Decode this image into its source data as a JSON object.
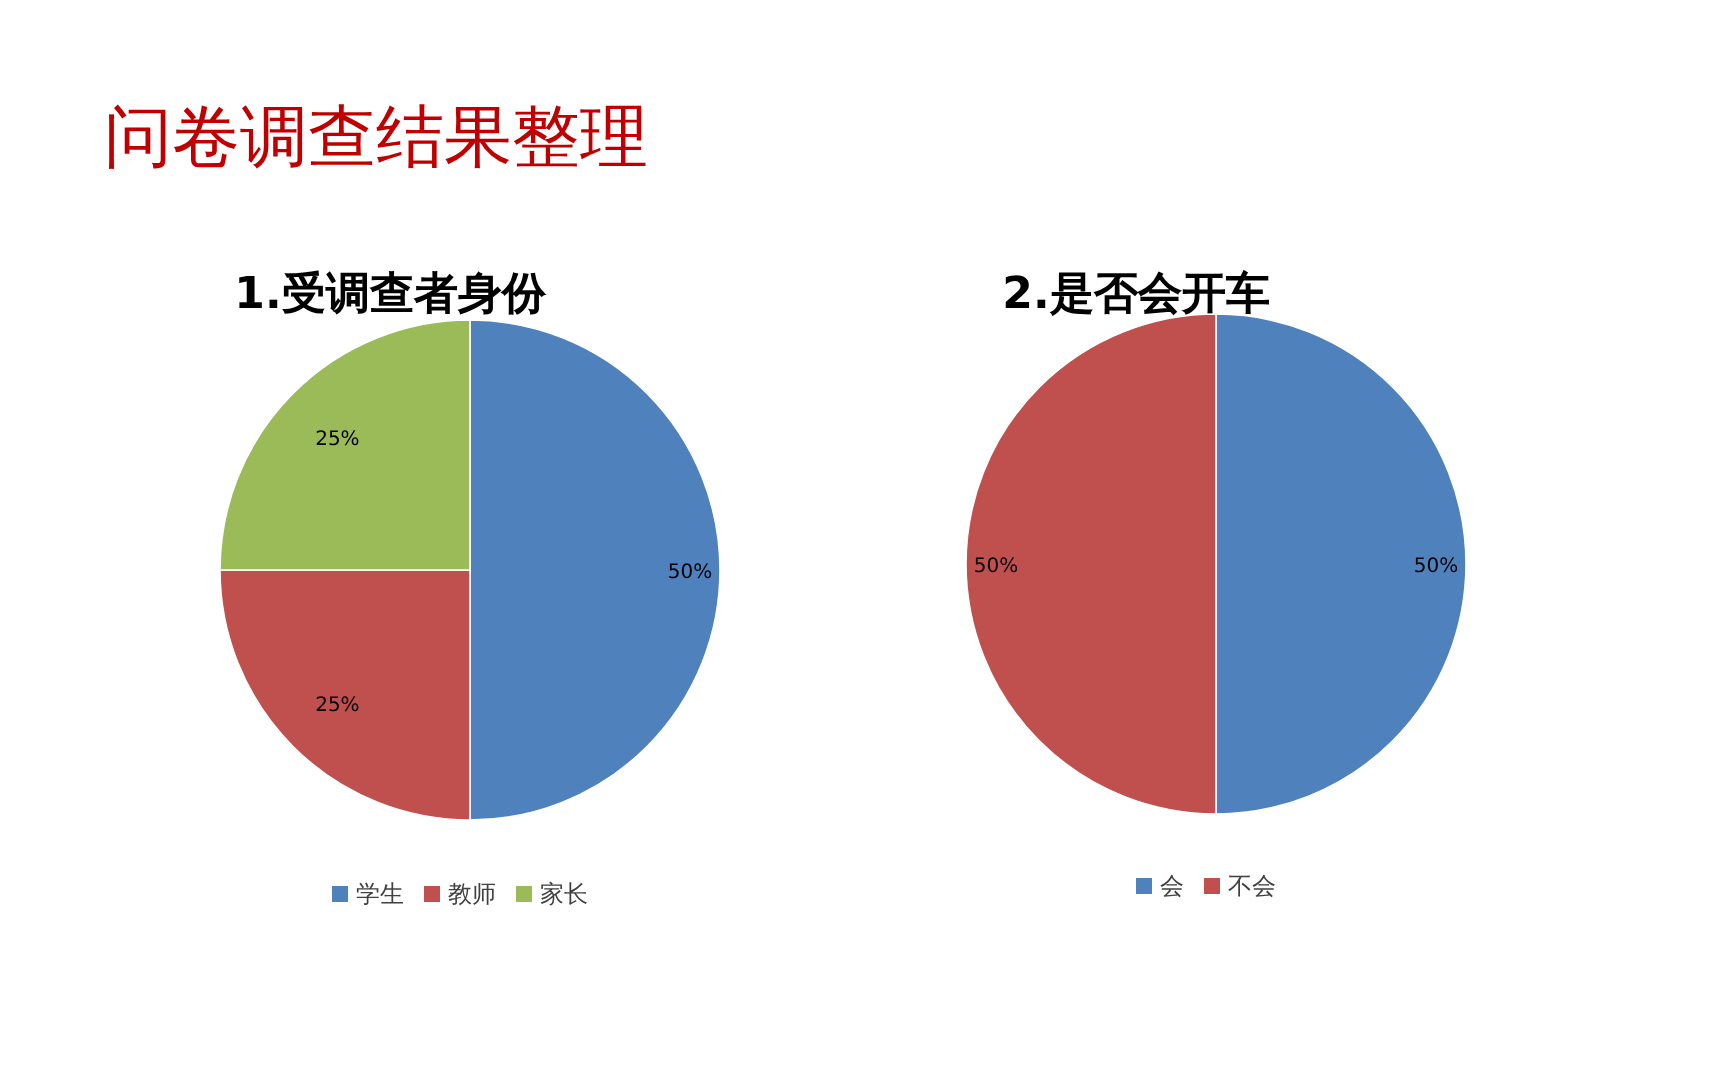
{
  "chart_data": [
    {
      "type": "pie",
      "title": "1.受调查者身份",
      "annotations": [
        "问卷调查结果整理"
      ],
      "categories": [
        "学生",
        "教师",
        "家长"
      ],
      "values": [
        50,
        25,
        25
      ],
      "colors": [
        "#4f81bd",
        "#c0504d",
        "#9bbb59"
      ],
      "value_labels": [
        "50%",
        "25%",
        "25%"
      ],
      "legend": "bottom"
    },
    {
      "type": "pie",
      "title": "2.是否会开车",
      "categories": [
        "会",
        "不会"
      ],
      "values": [
        50,
        50
      ],
      "colors": [
        "#4f81bd",
        "#c0504d"
      ],
      "value_labels": [
        "50%",
        "50%"
      ],
      "legend": "bottom"
    }
  ]
}
